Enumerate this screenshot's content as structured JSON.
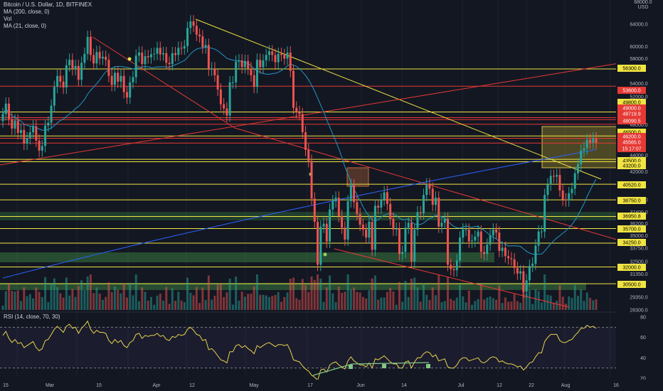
{
  "header": {
    "title": "Bitcoin / U.S. Dollar, 1D, BITFINEX",
    "indicators": [
      "MA (200, close, 0)",
      "Vol",
      "MA (21, close, 0)"
    ],
    "rsi_label": "RSI (14, close, 70, 30)"
  },
  "axis": {
    "currency": "USD",
    "top_value": "68000.0",
    "price_ticks": [
      "64000.0",
      "60000.0",
      "58000.0",
      "54000.0",
      "52000.0",
      "48000.0",
      "44000.0",
      "42000.0",
      "38750.0",
      "37400.0",
      "36200.0",
      "35000.0",
      "33750.0",
      "32500.0",
      "31350.0",
      "29350.0",
      "28300.0"
    ],
    "rsi_ticks": [
      "80",
      "60",
      "40",
      "20"
    ]
  },
  "levels": [
    {
      "label": "56300.0",
      "kind": "yellow"
    },
    {
      "label": "53600.0",
      "kind": "red"
    },
    {
      "label": "49800.0",
      "kind": "yellow"
    },
    {
      "label": "49000.0",
      "kind": "red"
    },
    {
      "label": "48719.9",
      "kind": "red"
    },
    {
      "label": "48090.5",
      "kind": "red"
    },
    {
      "label": "46500.0",
      "kind": "yellow"
    },
    {
      "label": "46200.0",
      "kind": "red"
    },
    {
      "label": "45565.0",
      "kind": "red"
    },
    {
      "label": "15:17:07",
      "kind": "red"
    },
    {
      "label": "43500.0",
      "kind": "yellow"
    },
    {
      "label": "43200.0",
      "kind": "yellow"
    },
    {
      "label": "40520.0",
      "kind": "yellow"
    },
    {
      "label": "38750.0",
      "kind": "yellow"
    },
    {
      "label": "36950.8",
      "kind": "yellow"
    },
    {
      "label": "35700.0",
      "kind": "yellow"
    },
    {
      "label": "34250.0",
      "kind": "yellow"
    },
    {
      "label": "32000.0",
      "kind": "yellow"
    },
    {
      "label": "30500.0",
      "kind": "yellow"
    }
  ],
  "x_axis": [
    "15",
    "Mar",
    "15",
    "Apr",
    "12",
    "May",
    "17",
    "Jun",
    "14",
    "Jul",
    "12",
    "22",
    "Aug",
    "16"
  ],
  "colors": {
    "up": "#26a69a",
    "down": "#ef5350",
    "background": "#131722",
    "ma200": "#2962ff",
    "ma21": "#2196c8",
    "level_yellow": "#f0e442",
    "level_red": "#e53935",
    "zone_green": "#4caf50"
  },
  "chart_data": {
    "type": "candlestick",
    "symbol": "BTCUSD",
    "interval": "1D",
    "exchange": "BITFINEX",
    "y_range": [
      28300,
      68000
    ],
    "closes": [
      49500,
      51000,
      48800,
      47500,
      48600,
      46900,
      47300,
      45500,
      46200,
      47000,
      47800,
      45900,
      44600,
      45200,
      47900,
      48300,
      50700,
      53500,
      55200,
      54300,
      53400,
      56900,
      57800,
      56300,
      56800,
      54600,
      57300,
      58800,
      61700,
      58600,
      57200,
      59100,
      58000,
      58300,
      57800,
      55200,
      53800,
      55700,
      54300,
      55200,
      52700,
      51900,
      54200,
      55000,
      58500,
      59000,
      57100,
      58400,
      58200,
      58700,
      58800,
      59800,
      58700,
      58900,
      57300,
      57100,
      58900,
      58600,
      59800,
      59700,
      60100,
      63300,
      64500,
      63700,
      62100,
      61800,
      59900,
      60300,
      56200,
      56400,
      55300,
      53100,
      50900,
      50300,
      49300,
      54200,
      54200,
      57500,
      57700,
      56600,
      57600,
      56400,
      55300,
      53500,
      57800,
      56600,
      57700,
      58600,
      59200,
      58600,
      57400,
      58800,
      58600,
      58000,
      59000,
      56000,
      50400,
      49800,
      49500,
      47000,
      44700,
      43300,
      38900,
      36400,
      32200,
      35900,
      36200,
      34400,
      37700,
      38600,
      39000,
      37000,
      35800,
      34600,
      38600,
      40400,
      38500,
      37200,
      36100,
      35600,
      34800,
      36400,
      33600,
      38100,
      37900,
      38800,
      39600,
      38300,
      36700,
      35600,
      35700,
      33200,
      33400,
      35800,
      36300,
      32500,
      35600,
      37400,
      37300,
      39300,
      40500,
      40000,
      38200,
      39000,
      35900,
      36300,
      36700,
      32200,
      31800,
      31700,
      32600,
      34800,
      35600,
      35600,
      34400,
      34500,
      34900,
      35400,
      33400,
      33200,
      34100,
      35000,
      35600,
      35300,
      33500,
      33800,
      33000,
      32800,
      32700,
      31900,
      31400,
      31600,
      29800,
      30800,
      32100,
      32300,
      34000,
      35400,
      35400,
      39300,
      40500,
      41500,
      41400,
      41600,
      39800,
      38800,
      38700,
      39500,
      40000,
      41800,
      42900,
      44600,
      44900,
      46000,
      45600,
      46200,
      45600
    ]
  },
  "rsi_data": [
    62,
    66,
    59,
    55,
    58,
    54,
    55,
    50,
    52,
    54,
    56,
    50,
    47,
    49,
    57,
    58,
    63,
    68,
    71,
    68,
    65,
    71,
    73,
    69,
    70,
    64,
    69,
    72,
    76,
    68,
    64,
    67,
    65,
    65,
    64,
    57,
    54,
    58,
    55,
    57,
    52,
    50,
    55,
    57,
    63,
    64,
    59,
    62,
    61,
    62,
    62,
    64,
    61,
    62,
    58,
    57,
    61,
    60,
    63,
    62,
    63,
    68,
    70,
    67,
    63,
    62,
    57,
    58,
    48,
    49,
    46,
    42,
    38,
    37,
    35,
    46,
    46,
    52,
    53,
    50,
    52,
    49,
    47,
    44,
    52,
    50,
    52,
    54,
    55,
    53,
    51,
    53,
    53,
    52,
    53,
    47,
    38,
    37,
    36,
    32,
    29,
    27,
    23,
    21,
    18,
    28,
    29,
    26,
    33,
    35,
    36,
    33,
    31,
    29,
    37,
    41,
    37,
    35,
    33,
    33,
    31,
    35,
    30,
    39,
    38,
    40,
    42,
    39,
    36,
    34,
    34,
    30,
    30,
    36,
    37,
    30,
    36,
    40,
    40,
    44,
    46,
    45,
    41,
    43,
    37,
    38,
    39,
    31,
    30,
    30,
    33,
    38,
    40,
    40,
    37,
    38,
    39,
    40,
    36,
    35,
    37,
    40,
    41,
    40,
    36,
    37,
    35,
    34,
    34,
    33,
    31,
    32,
    28,
    31,
    35,
    36,
    41,
    45,
    45,
    56,
    60,
    63,
    63,
    63,
    57,
    55,
    55,
    57,
    58,
    62,
    65,
    69,
    69,
    72,
    70,
    71,
    69
  ]
}
